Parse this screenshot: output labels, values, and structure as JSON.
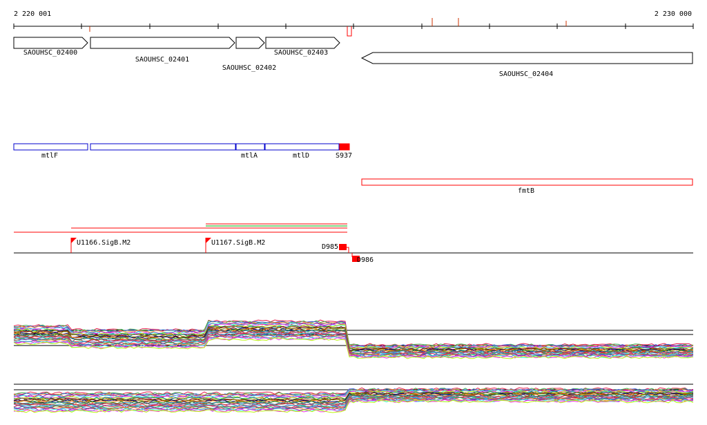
{
  "ruler": {
    "start_label": "2 220 001",
    "end_label": "2 230 000"
  },
  "genes": [
    {
      "label": "SAOUHSC_02400",
      "strand": "+"
    },
    {
      "label": "SAOUHSC_02401",
      "strand": "+"
    },
    {
      "label": "SAOUHSC_02402",
      "strand": "+"
    },
    {
      "label": "SAOUHSC_02403",
      "strand": "+"
    },
    {
      "label": "SAOUHSC_02404",
      "strand": "-"
    }
  ],
  "operons": [
    {
      "label": "mtlF",
      "color": "#0000cc"
    },
    {
      "label": "",
      "color": "#0000cc"
    },
    {
      "label": "mtlA",
      "color": "#0000cc"
    },
    {
      "label": "mtlD",
      "color": "#0000cc"
    },
    {
      "label": "S937",
      "color": "#ff0000"
    }
  ],
  "antisense": {
    "label": "fmtB",
    "color": "#ff0000"
  },
  "promoters": [
    {
      "label": "U1166.SigB.M2"
    },
    {
      "label": "U1167.SigB.M2"
    }
  ],
  "terminators": [
    {
      "label": "D985"
    },
    {
      "label": "D986"
    }
  ],
  "colors": {
    "axis": "#000000",
    "gene_outline": "#000000",
    "operon": "#0000cc",
    "feature_red": "#ff0000",
    "feature_green": "#00aa00",
    "ruler_tick_red": "#cc3300"
  }
}
